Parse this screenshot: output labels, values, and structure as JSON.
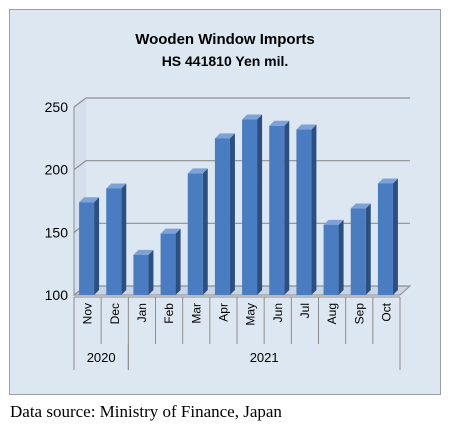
{
  "chart_data": {
    "type": "bar",
    "title": "Wooden Window Imports",
    "subtitle": "HS 441810 Yen mil.",
    "categories": [
      "Nov",
      "Dec",
      "Jan",
      "Feb",
      "Mar",
      "Apr",
      "May",
      "Jun",
      "Jul",
      "Aug",
      "Sep",
      "Oct"
    ],
    "years": [
      {
        "label": "2020",
        "from": 0,
        "to": 1
      },
      {
        "label": "2021",
        "from": 2,
        "to": 11
      }
    ],
    "values": [
      174,
      185,
      132,
      149,
      197,
      225,
      240,
      235,
      232,
      156,
      169,
      189
    ],
    "ylim": [
      100,
      250
    ],
    "yticks": [
      100,
      150,
      200,
      250
    ],
    "grid": true,
    "legend": "none",
    "bar_color": "#4a7cc2",
    "xlabel": "",
    "ylabel": ""
  },
  "source_note": "Data source: Ministry of Finance, Japan"
}
